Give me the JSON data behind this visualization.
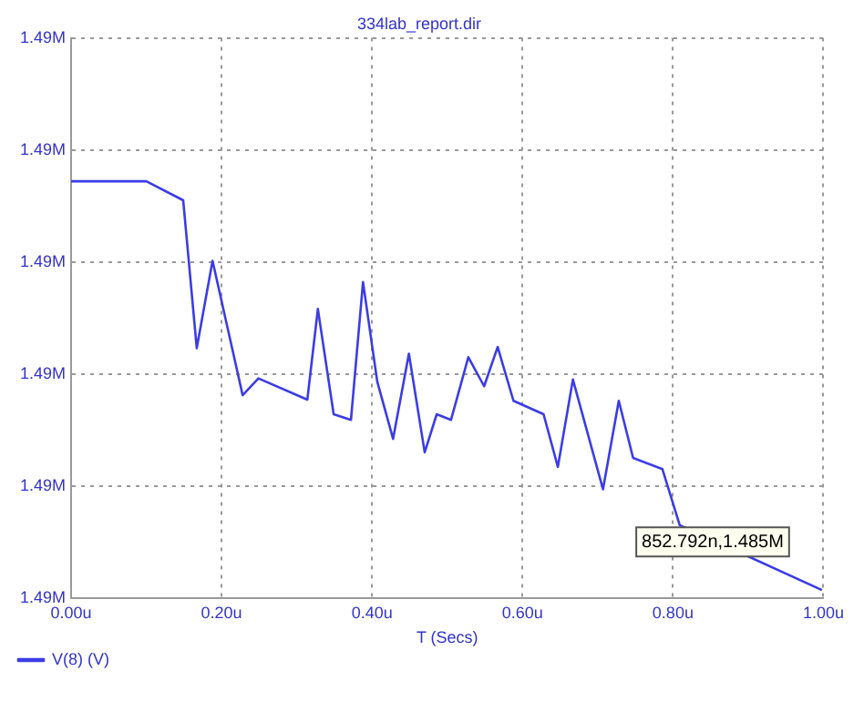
{
  "chart_data": {
    "type": "line",
    "title": "334lab_report.dir",
    "xlabel": "T (Secs)",
    "x": [
      0,
      0.1,
      0.149,
      0.167,
      0.188,
      0.228,
      0.249,
      0.314,
      0.328,
      0.349,
      0.372,
      0.388,
      0.407,
      0.428,
      0.449,
      0.47,
      0.486,
      0.505,
      0.528,
      0.549,
      0.567,
      0.588,
      0.628,
      0.647,
      0.667,
      0.707,
      0.728,
      0.747,
      0.786,
      0.809,
      0.998
    ],
    "series": [
      {
        "name": "V(8) (V)",
        "color": "#3c3ce6",
        "values": [
          1.48872,
          1.48872,
          1.48855,
          1.48723,
          1.48801,
          1.48681,
          1.48696,
          1.48677,
          1.48758,
          1.48664,
          1.48659,
          1.48782,
          1.48693,
          1.48642,
          1.48718,
          1.4863,
          1.48664,
          1.48659,
          1.48715,
          1.48689,
          1.48724,
          1.48676,
          1.48664,
          1.48617,
          1.48695,
          1.48597,
          1.48676,
          1.48625,
          1.48615,
          1.48565,
          1.48507
        ]
      }
    ],
    "xlim": [
      0,
      1
    ],
    "xticks": [
      {
        "value": 0,
        "label": "0.00u"
      },
      {
        "value": 0.2,
        "label": "0.20u"
      },
      {
        "value": 0.4,
        "label": "0.40u"
      },
      {
        "value": 0.6,
        "label": "0.60u"
      },
      {
        "value": 0.8,
        "label": "0.80u"
      },
      {
        "value": 1,
        "label": "1.00u"
      }
    ],
    "ylim": [
      1.485,
      1.49
    ],
    "yticks": [
      {
        "value": 1.485,
        "label": "1.49M"
      },
      {
        "value": 1.486,
        "label": "1.49M"
      },
      {
        "value": 1.487,
        "label": "1.49M"
      },
      {
        "value": 1.488,
        "label": "1.49M"
      },
      {
        "value": 1.489,
        "label": "1.49M"
      },
      {
        "value": 1.49,
        "label": "1.49M"
      }
    ],
    "grid": true,
    "legend": "bottom left",
    "marker": "none",
    "line_style": "solid",
    "annotations": [
      {
        "text": "852.792n,1.485M",
        "x": 0.852792,
        "y": 1.4855
      }
    ]
  }
}
